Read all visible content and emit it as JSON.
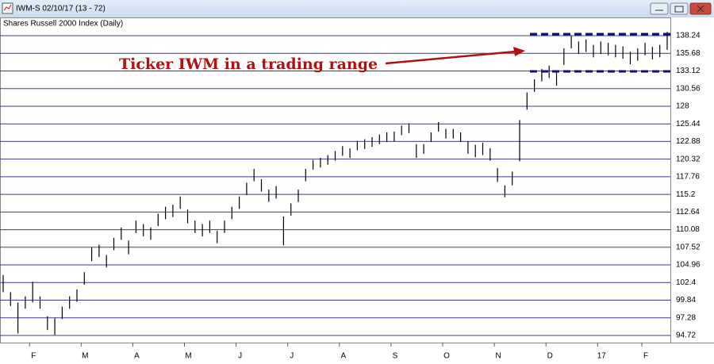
{
  "window": {
    "title": "IWM-S 02/10/17 (13 - 72)"
  },
  "chart_data": {
    "type": "ohlc",
    "title": "Shares Russell 2000 Index (Daily)",
    "categories": [
      null,
      null,
      null,
      null,
      "F",
      null,
      null,
      null,
      null,
      null,
      null,
      "M",
      null,
      null,
      null,
      null,
      null,
      null,
      "A",
      null,
      null,
      null,
      null,
      null,
      null,
      "M",
      null,
      null,
      null,
      null,
      null,
      null,
      "J",
      null,
      null,
      null,
      null,
      null,
      null,
      "J",
      null,
      null,
      null,
      null,
      null,
      null,
      "A",
      null,
      null,
      null,
      null,
      null,
      null,
      "S",
      null,
      null,
      null,
      null,
      null,
      null,
      "O",
      null,
      null,
      null,
      null,
      null,
      null,
      "N",
      null,
      null,
      null,
      null,
      null,
      null,
      "D",
      null,
      null,
      null,
      null,
      null,
      null,
      "17",
      null,
      null,
      null,
      null,
      null,
      "F",
      null,
      null,
      null
    ],
    "high": [
      103.5,
      101,
      99.5,
      100.4,
      102.5,
      100.4,
      97.5,
      97.2,
      98.9,
      100.4,
      101.4,
      103.9,
      107.5,
      107.9,
      106.4,
      108.9,
      110.4,
      108.5,
      111.4,
      110.9,
      110.4,
      112.4,
      113.4,
      113.7,
      114.9,
      113,
      111.4,
      110.9,
      111.4,
      109.9,
      111.4,
      113.4,
      114.9,
      116.9,
      118.9,
      117.4,
      115.9,
      116.4,
      112,
      113.9,
      115.9,
      118.9,
      120.2,
      120.5,
      120.9,
      121.5,
      122.2,
      121.9,
      123,
      123.2,
      123.5,
      123.9,
      124.2,
      124.3,
      125.2,
      125.5,
      122.5,
      122.5,
      124.2,
      125.7,
      124.7,
      124.7,
      124.2,
      122.9,
      122.4,
      122.7,
      121.9,
      119,
      116.5,
      118.5,
      126,
      130,
      131.9,
      133.4,
      133.9,
      133,
      136.4,
      138.2,
      137.4,
      137.7,
      136.9,
      137.4,
      137.2,
      136.9,
      136.7,
      135.9,
      136.4,
      137.2,
      136.6,
      136.9,
      138.8
    ],
    "low": [
      101,
      99,
      95,
      98.6,
      99.5,
      98.6,
      95.5,
      94.8,
      97.1,
      98.6,
      99.6,
      102.1,
      105.5,
      106.1,
      104.6,
      107.1,
      108.6,
      106.5,
      109.6,
      109.1,
      108.6,
      110.6,
      111.6,
      111.9,
      113.1,
      111,
      109.6,
      109.1,
      109.6,
      108.1,
      109.6,
      111.6,
      113.1,
      115.1,
      117.1,
      115.6,
      114.1,
      114.6,
      107.8,
      112.1,
      114.1,
      117.1,
      118.8,
      119.1,
      119.5,
      120.1,
      120.8,
      120.5,
      121.6,
      121.8,
      122.1,
      122.5,
      122.8,
      122.9,
      123.8,
      124.1,
      120.5,
      121.1,
      122.8,
      124.3,
      123.3,
      123.3,
      122.8,
      121.1,
      120.6,
      120.9,
      120.1,
      117,
      114.8,
      116.5,
      120,
      127.5,
      130.1,
      131.6,
      132.1,
      131,
      134,
      136.4,
      135.6,
      135.9,
      135.1,
      135.6,
      135.4,
      135.1,
      134.9,
      134.1,
      134.6,
      135.4,
      134.8,
      135.1,
      136.2
    ],
    "color": "#000000",
    "grid": true,
    "grid_color": "#3b3b8f",
    "ylim": [
      93.68,
      139.28
    ],
    "yticks": [
      94.72,
      97.28,
      99.84,
      102.4,
      104.96,
      107.52,
      110.08,
      112.64,
      115.2,
      117.76,
      120.32,
      122.88,
      125.44,
      128,
      130.56,
      133.12,
      135.68,
      138.24
    ],
    "annotation": {
      "text": "Ticker IWM in a trading range",
      "color": "#b01010",
      "range": [
        138.47,
        133.06
      ],
      "range_color": "#101070"
    }
  }
}
